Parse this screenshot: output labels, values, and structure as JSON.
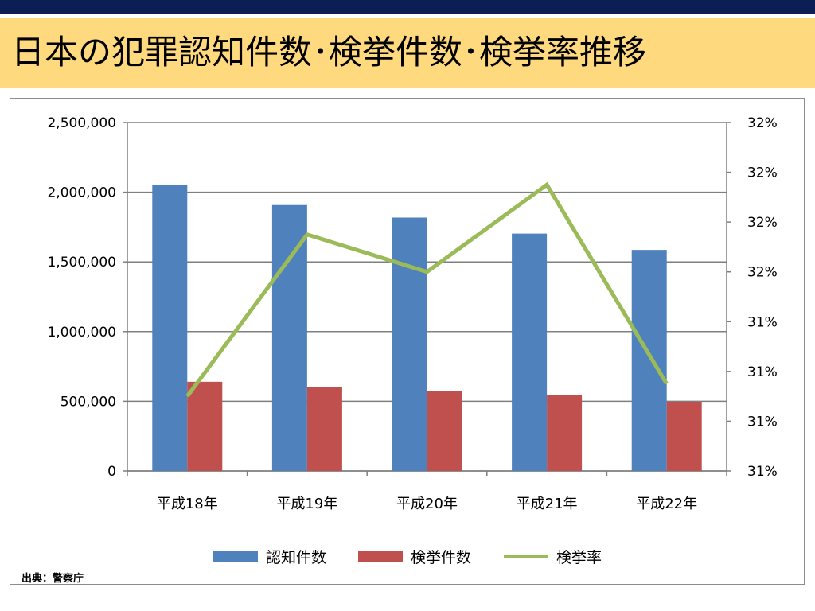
{
  "page": {
    "title": "日本の犯罪認知件数･検挙件数･検挙率推移",
    "source": "出典：警察庁",
    "colors": {
      "top_band": "#0c1f55",
      "title_bg": "#ffd97d",
      "grid": "#7f7f7f"
    }
  },
  "chart_data": {
    "type": "bar",
    "title": "",
    "categories": [
      "平成18年",
      "平成19年",
      "平成20年",
      "平成21年",
      "平成22年"
    ],
    "series": [
      {
        "name": "認知件数",
        "type": "bar",
        "axis": "left",
        "color": "#4f81bd",
        "values": [
          2050000,
          1908000,
          1818000,
          1703000,
          1586000
        ]
      },
      {
        "name": "検挙件数",
        "type": "bar",
        "axis": "left",
        "color": "#c0504d",
        "values": [
          640000,
          605000,
          573000,
          545000,
          497000
        ]
      },
      {
        "name": "検挙率",
        "type": "line",
        "axis": "right",
        "color": "#9bbb59",
        "values": [
          31.1,
          31.75,
          31.6,
          31.95,
          31.15
        ]
      }
    ],
    "y_left": {
      "lim": [
        0,
        2500000
      ],
      "ticks": [
        0,
        500000,
        1000000,
        1500000,
        2000000,
        2500000
      ],
      "tick_labels": [
        "0",
        "500,000",
        "1,000,000",
        "1,500,000",
        "2,000,000",
        "2,500,000"
      ]
    },
    "y_right": {
      "lim": [
        30.8,
        32.2
      ],
      "ticks": [
        30.8,
        31.0,
        31.2,
        31.4,
        31.6,
        31.8,
        32.0,
        32.2
      ],
      "tick_labels": [
        "31%",
        "31%",
        "31%",
        "31%",
        "32%",
        "32%",
        "32%",
        "32%"
      ]
    },
    "xlabel": "",
    "ylabel": "",
    "grid": true,
    "legend": "bottom"
  }
}
